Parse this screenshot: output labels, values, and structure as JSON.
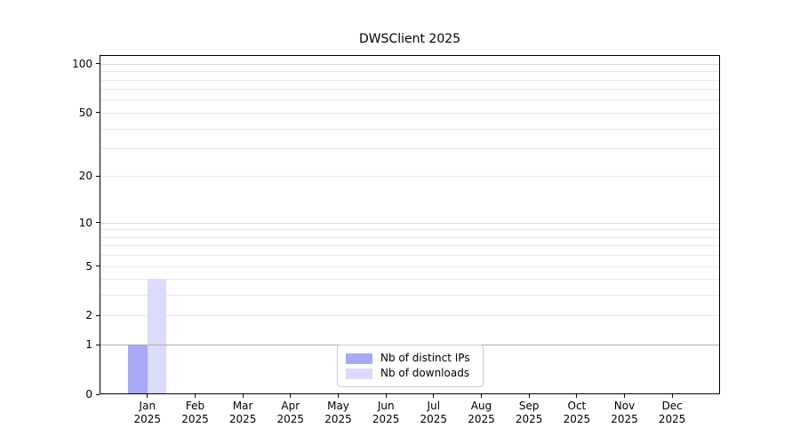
{
  "chart_data": {
    "type": "bar",
    "title": "DWSClient 2025",
    "y_scale": "log10(1+v)",
    "ylim": [
      0,
      113
    ],
    "grid": "horizontal",
    "legend_position": "bottom-center-inside",
    "categories": [
      "Jan",
      "Feb",
      "Mar",
      "Apr",
      "May",
      "Jun",
      "Jul",
      "Aug",
      "Sep",
      "Oct",
      "Nov",
      "Dec"
    ],
    "category_year": "2025",
    "y_ticks": [
      0,
      1,
      2,
      5,
      10,
      20,
      50,
      100
    ],
    "y_grid_minor": [
      2,
      3,
      4,
      5,
      6,
      7,
      8,
      9,
      20,
      30,
      40,
      50,
      60,
      70,
      80,
      90
    ],
    "y_grid_major": [
      10,
      100
    ],
    "y_grid_strong": [
      1
    ],
    "series": [
      {
        "id": "distinct-ips",
        "name": "Nb of distinct IPs",
        "color": "#a8a8f6",
        "values": [
          1,
          0,
          0,
          0,
          0,
          0,
          0,
          0,
          0,
          0,
          0,
          0
        ]
      },
      {
        "id": "downloads",
        "name": "Nb of downloads",
        "color": "#dbdbfb",
        "values": [
          4,
          0,
          0,
          0,
          0,
          0,
          0,
          0,
          0,
          0,
          0,
          0
        ]
      }
    ]
  }
}
